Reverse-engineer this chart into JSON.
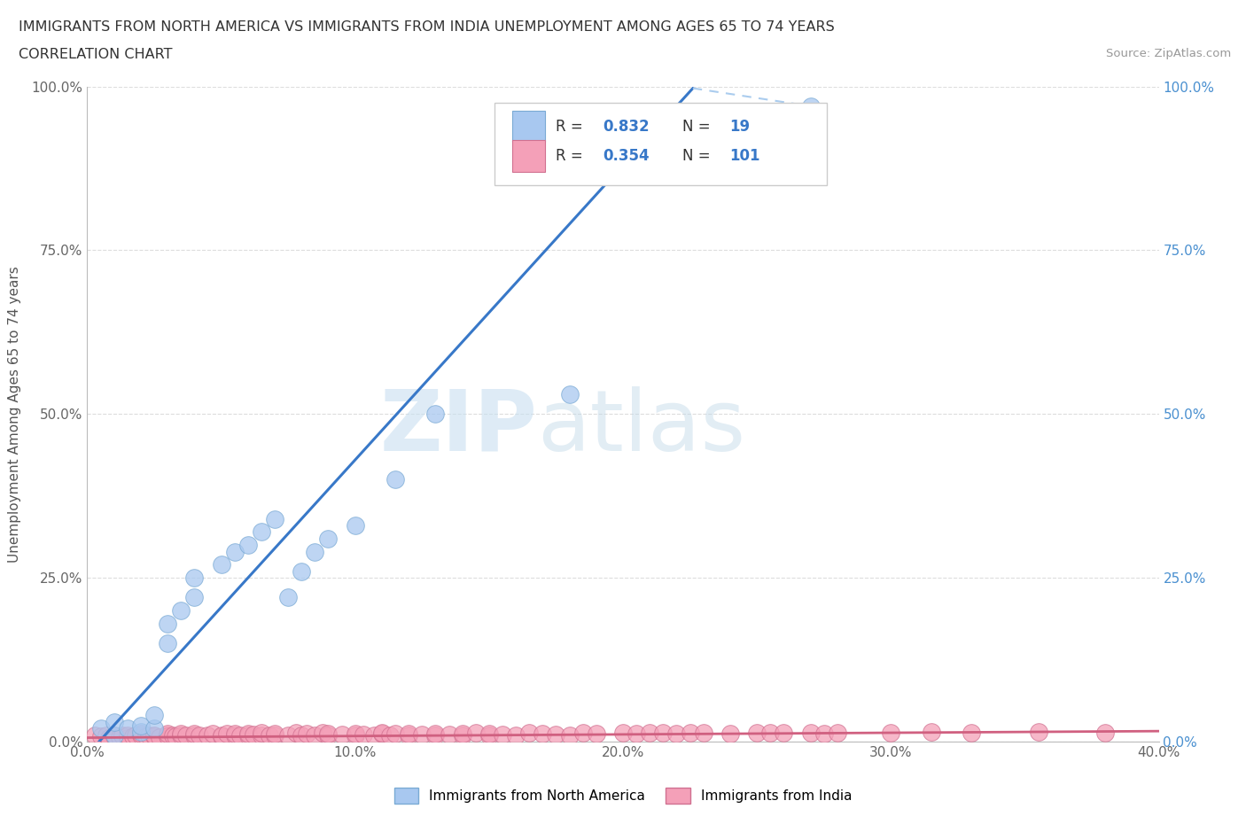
{
  "title_line1": "IMMIGRANTS FROM NORTH AMERICA VS IMMIGRANTS FROM INDIA UNEMPLOYMENT AMONG AGES 65 TO 74 YEARS",
  "title_line2": "CORRELATION CHART",
  "source_text": "Source: ZipAtlas.com",
  "ylabel": "Unemployment Among Ages 65 to 74 years",
  "xlim": [
    0.0,
    0.4
  ],
  "ylim": [
    0.0,
    1.0
  ],
  "xtick_labels": [
    "0.0%",
    "10.0%",
    "20.0%",
    "30.0%",
    "40.0%"
  ],
  "xtick_values": [
    0.0,
    0.1,
    0.2,
    0.3,
    0.4
  ],
  "ytick_labels": [
    "0.0%",
    "25.0%",
    "50.0%",
    "75.0%",
    "100.0%"
  ],
  "ytick_values": [
    0.0,
    0.25,
    0.5,
    0.75,
    1.0
  ],
  "na_color": "#a8c8f0",
  "na_edge_color": "#7aaad4",
  "india_color": "#f4a0b8",
  "india_edge_color": "#d07090",
  "na_line_color": "#3878c8",
  "na_line_dash_color": "#aaccee",
  "india_line_color": "#d06080",
  "watermark_zip": "ZIP",
  "watermark_atlas": "atlas",
  "background_color": "#ffffff",
  "grid_color": "#dddddd",
  "right_axis_color": "#4a90d0",
  "na_scatter_x": [
    0.005,
    0.01,
    0.01,
    0.015,
    0.02,
    0.02,
    0.025,
    0.025,
    0.03,
    0.03,
    0.035,
    0.04,
    0.04,
    0.05,
    0.055,
    0.06,
    0.065,
    0.07,
    0.075,
    0.08,
    0.085,
    0.09,
    0.1,
    0.115,
    0.13,
    0.18,
    0.27
  ],
  "na_scatter_y": [
    0.02,
    0.01,
    0.03,
    0.02,
    0.015,
    0.025,
    0.02,
    0.04,
    0.15,
    0.18,
    0.2,
    0.22,
    0.25,
    0.27,
    0.29,
    0.3,
    0.32,
    0.34,
    0.22,
    0.26,
    0.29,
    0.31,
    0.33,
    0.4,
    0.5,
    0.53,
    0.97
  ],
  "india_scatter_x": [
    0.003,
    0.005,
    0.007,
    0.008,
    0.01,
    0.01,
    0.012,
    0.013,
    0.015,
    0.015,
    0.017,
    0.018,
    0.02,
    0.02,
    0.022,
    0.023,
    0.025,
    0.025,
    0.027,
    0.03,
    0.03,
    0.03,
    0.032,
    0.033,
    0.035,
    0.035,
    0.037,
    0.04,
    0.04,
    0.042,
    0.045,
    0.047,
    0.05,
    0.05,
    0.052,
    0.055,
    0.055,
    0.057,
    0.06,
    0.06,
    0.062,
    0.065,
    0.065,
    0.068,
    0.07,
    0.07,
    0.075,
    0.078,
    0.08,
    0.082,
    0.085,
    0.088,
    0.09,
    0.09,
    0.095,
    0.1,
    0.1,
    0.103,
    0.107,
    0.11,
    0.11,
    0.113,
    0.115,
    0.12,
    0.12,
    0.125,
    0.13,
    0.13,
    0.135,
    0.14,
    0.14,
    0.145,
    0.15,
    0.15,
    0.155,
    0.16,
    0.165,
    0.17,
    0.175,
    0.18,
    0.185,
    0.19,
    0.2,
    0.205,
    0.21,
    0.215,
    0.22,
    0.225,
    0.23,
    0.24,
    0.25,
    0.255,
    0.26,
    0.27,
    0.275,
    0.28,
    0.3,
    0.315,
    0.33,
    0.355,
    0.38
  ],
  "india_scatter_y": [
    0.01,
    0.008,
    0.01,
    0.005,
    0.01,
    0.008,
    0.007,
    0.01,
    0.005,
    0.01,
    0.008,
    0.01,
    0.01,
    0.012,
    0.008,
    0.01,
    0.008,
    0.01,
    0.007,
    0.01,
    0.008,
    0.012,
    0.01,
    0.008,
    0.01,
    0.012,
    0.009,
    0.01,
    0.012,
    0.009,
    0.01,
    0.012,
    0.008,
    0.01,
    0.012,
    0.01,
    0.012,
    0.009,
    0.01,
    0.012,
    0.011,
    0.01,
    0.013,
    0.009,
    0.01,
    0.012,
    0.01,
    0.013,
    0.01,
    0.012,
    0.01,
    0.013,
    0.01,
    0.012,
    0.011,
    0.01,
    0.012,
    0.011,
    0.01,
    0.012,
    0.013,
    0.01,
    0.012,
    0.01,
    0.012,
    0.011,
    0.01,
    0.012,
    0.011,
    0.01,
    0.012,
    0.013,
    0.01,
    0.012,
    0.011,
    0.01,
    0.013,
    0.012,
    0.011,
    0.01,
    0.013,
    0.012,
    0.013,
    0.012,
    0.014,
    0.013,
    0.012,
    0.014,
    0.013,
    0.012,
    0.013,
    0.014,
    0.013,
    0.014,
    0.012,
    0.013,
    0.014,
    0.015,
    0.014,
    0.015,
    0.013
  ]
}
